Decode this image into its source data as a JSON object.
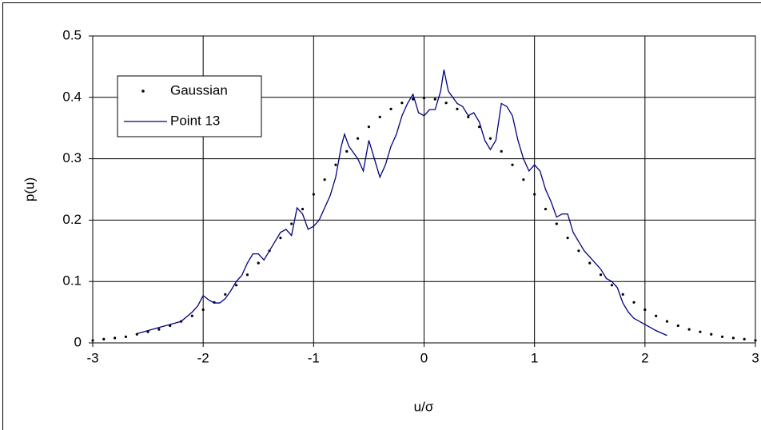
{
  "chart_data": {
    "type": "line",
    "xlabel": "u/σ",
    "ylabel": "p(u)",
    "xlim": [
      -3,
      3
    ],
    "ylim": [
      0,
      0.5
    ],
    "xticks": [
      -3,
      -2,
      -1,
      0,
      1,
      2,
      3
    ],
    "yticks": [
      0,
      0.1,
      0.2,
      0.3,
      0.4,
      0.5
    ],
    "grid": true,
    "legend": "upper left",
    "series": [
      {
        "name": "Gaussian",
        "color": "#000000",
        "style": "markers",
        "x": [
          -3.0,
          -2.9,
          -2.8,
          -2.7,
          -2.6,
          -2.5,
          -2.4,
          -2.3,
          -2.2,
          -2.1,
          -2.0,
          -1.9,
          -1.8,
          -1.7,
          -1.6,
          -1.5,
          -1.4,
          -1.3,
          -1.2,
          -1.1,
          -1.0,
          -0.9,
          -0.8,
          -0.7,
          -0.6,
          -0.5,
          -0.4,
          -0.3,
          -0.2,
          -0.1,
          0.0,
          0.1,
          0.2,
          0.3,
          0.4,
          0.5,
          0.6,
          0.7,
          0.8,
          0.9,
          1.0,
          1.1,
          1.2,
          1.3,
          1.4,
          1.5,
          1.6,
          1.7,
          1.8,
          1.9,
          2.0,
          2.1,
          2.2,
          2.3,
          2.4,
          2.5,
          2.6,
          2.7,
          2.8,
          2.9,
          3.0
        ],
        "values": [
          0.004,
          0.006,
          0.008,
          0.01,
          0.014,
          0.018,
          0.022,
          0.028,
          0.035,
          0.044,
          0.054,
          0.066,
          0.079,
          0.094,
          0.111,
          0.13,
          0.15,
          0.171,
          0.194,
          0.218,
          0.242,
          0.266,
          0.29,
          0.312,
          0.333,
          0.352,
          0.368,
          0.381,
          0.391,
          0.397,
          0.399,
          0.397,
          0.391,
          0.381,
          0.368,
          0.352,
          0.333,
          0.312,
          0.29,
          0.266,
          0.242,
          0.218,
          0.194,
          0.171,
          0.15,
          0.13,
          0.111,
          0.094,
          0.079,
          0.066,
          0.054,
          0.044,
          0.035,
          0.028,
          0.022,
          0.018,
          0.014,
          0.01,
          0.008,
          0.006,
          0.004
        ]
      },
      {
        "name": "Point 13",
        "color": "#000080",
        "style": "line",
        "x": [
          -2.6,
          -2.5,
          -2.4,
          -2.3,
          -2.2,
          -2.1,
          -2.05,
          -2.0,
          -1.95,
          -1.9,
          -1.85,
          -1.8,
          -1.75,
          -1.7,
          -1.65,
          -1.6,
          -1.55,
          -1.5,
          -1.45,
          -1.4,
          -1.35,
          -1.3,
          -1.25,
          -1.2,
          -1.15,
          -1.1,
          -1.05,
          -1.0,
          -0.95,
          -0.9,
          -0.85,
          -0.8,
          -0.75,
          -0.72,
          -0.68,
          -0.6,
          -0.55,
          -0.5,
          -0.45,
          -0.4,
          -0.35,
          -0.3,
          -0.25,
          -0.2,
          -0.15,
          -0.1,
          -0.05,
          0.0,
          0.05,
          0.1,
          0.15,
          0.18,
          0.22,
          0.3,
          0.35,
          0.4,
          0.45,
          0.5,
          0.55,
          0.6,
          0.65,
          0.7,
          0.75,
          0.8,
          0.85,
          0.9,
          0.95,
          1.0,
          1.05,
          1.1,
          1.15,
          1.2,
          1.25,
          1.3,
          1.35,
          1.4,
          1.45,
          1.5,
          1.55,
          1.6,
          1.65,
          1.7,
          1.75,
          1.8,
          1.85,
          1.9,
          2.0,
          2.1,
          2.2
        ],
        "values": [
          0.015,
          0.02,
          0.025,
          0.03,
          0.035,
          0.05,
          0.06,
          0.077,
          0.07,
          0.065,
          0.065,
          0.072,
          0.085,
          0.1,
          0.11,
          0.13,
          0.145,
          0.145,
          0.135,
          0.15,
          0.165,
          0.18,
          0.185,
          0.175,
          0.22,
          0.21,
          0.185,
          0.19,
          0.2,
          0.22,
          0.24,
          0.27,
          0.32,
          0.34,
          0.32,
          0.3,
          0.28,
          0.33,
          0.3,
          0.27,
          0.29,
          0.32,
          0.34,
          0.37,
          0.39,
          0.405,
          0.375,
          0.37,
          0.38,
          0.38,
          0.41,
          0.445,
          0.41,
          0.39,
          0.385,
          0.37,
          0.375,
          0.36,
          0.33,
          0.315,
          0.33,
          0.39,
          0.385,
          0.37,
          0.33,
          0.3,
          0.28,
          0.29,
          0.28,
          0.25,
          0.23,
          0.205,
          0.21,
          0.21,
          0.18,
          0.165,
          0.15,
          0.14,
          0.13,
          0.12,
          0.105,
          0.1,
          0.09,
          0.065,
          0.05,
          0.04,
          0.03,
          0.02,
          0.012
        ]
      }
    ]
  }
}
